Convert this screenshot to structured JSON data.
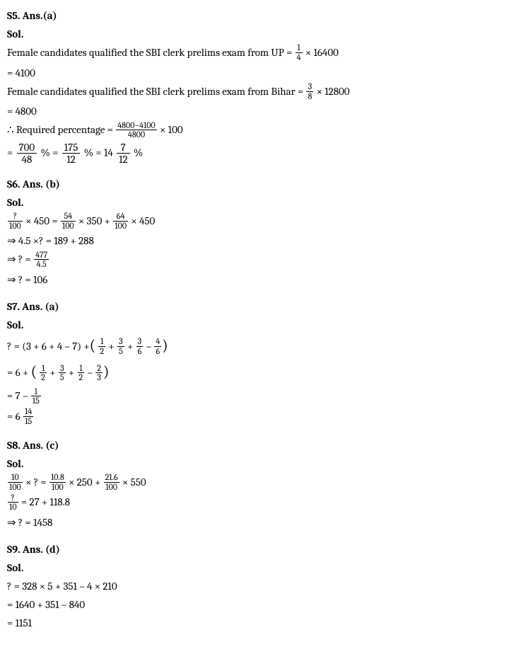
{
  "s5": {
    "header": "S5. Ans.(a)",
    "sol": "Sol.",
    "l1a": "Female candidates qualified the SBI clerk prelims exam from UP = ",
    "l1_frac_num": "1",
    "l1_frac_den": "4",
    "l1b": " × 16400",
    "l2": "= 4100",
    "l3a": "Female candidates qualified the SBI clerk prelims exam from Bihar = ",
    "l3_frac_num": "3",
    "l3_frac_den": "8",
    "l3b": " × 12800",
    "l4": "= 4800",
    "l5a": "∴ Required percentage = ",
    "l5_frac_num": "4800−4100",
    "l5_frac_den": "4800",
    "l5b": " × 100",
    "l6a": "= ",
    "l6_f1_num": "700",
    "l6_f1_den": "48",
    "l6b": "% = ",
    "l6_f2_num": "175",
    "l6_f2_den": "12",
    "l6c": "% = 14",
    "l6_f3_num": "7",
    "l6_f3_den": "12",
    "l6d": "%"
  },
  "s6": {
    "header": "S6. Ans. (b)",
    "sol": "Sol.",
    "l1_f1_num": "?",
    "l1_f1_den": "100",
    "l1a": " × 450 = ",
    "l1_f2_num": "54",
    "l1_f2_den": "100",
    "l1b": " × 350 + ",
    "l1_f3_num": "64",
    "l1_f3_den": "100",
    "l1c": " × 450",
    "l2": "⇒ 4.5 ×? = 189 + 288",
    "l3a": "⇒ ? = ",
    "l3_frac_num": "477",
    "l3_frac_den": "4.5",
    "l4": "⇒ ? = 106"
  },
  "s7": {
    "header": "S7. Ans. (a)",
    "sol": "Sol.",
    "l1a": "? = (3 + 6 + 4 – 7) +",
    "l1_f1_num": "1",
    "l1_f1_den": "2",
    "l1b": " + ",
    "l1_f2_num": "3",
    "l1_f2_den": "5",
    "l1c": " + ",
    "l1_f3_num": "3",
    "l1_f3_den": "6",
    "l1d": " – ",
    "l1_f4_num": "4",
    "l1_f4_den": "6",
    "l2a": "= 6 + ",
    "l2_f1_num": "1",
    "l2_f1_den": "2",
    "l2b": " + ",
    "l2_f2_num": "3",
    "l2_f2_den": "5",
    "l2c": " + ",
    "l2_f3_num": "1",
    "l2_f3_den": "2",
    "l2d": " – ",
    "l2_f4_num": "2",
    "l2_f4_den": "3",
    "l3a": "= 7 – ",
    "l3_frac_num": "1",
    "l3_frac_den": "15",
    "l4a": "= 6",
    "l4_frac_num": "14",
    "l4_frac_den": "15"
  },
  "s8": {
    "header": "S8. Ans. (c)",
    "sol": "Sol.",
    "l1_f1_num": "10",
    "l1_f1_den": "100",
    "l1a": " × ? = ",
    "l1_f2_num": "10.8",
    "l1_f2_den": "100",
    "l1b": " × 250 + ",
    "l1_f3_num": "21.6",
    "l1_f3_den": "100",
    "l1c": " × 550",
    "l2_frac_num": "?",
    "l2_frac_den": "10",
    "l2a": " = 27 + 118.8",
    "l3": "⇒ ? = 1458"
  },
  "s9": {
    "header": "S9. Ans. (d)",
    "sol": "Sol.",
    "l1": "? = 328 × 5 + 351 – 4 × 210",
    "l2": "= 1640 + 351 – 840",
    "l3": "= 1151"
  }
}
